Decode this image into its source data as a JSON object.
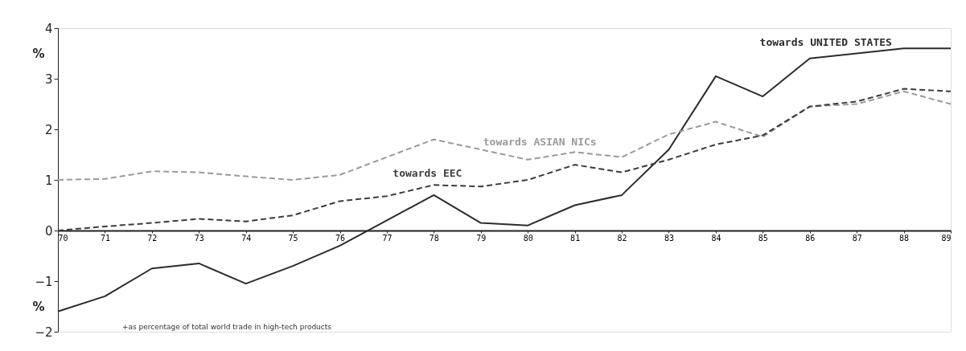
{
  "chart_data": {
    "type": "line",
    "categories": [
      "70",
      "71",
      "72",
      "73",
      "74",
      "75",
      "76",
      "77",
      "78",
      "79",
      "80",
      "81",
      "82",
      "83",
      "84",
      "85",
      "86",
      "87",
      "88",
      "89"
    ],
    "series": [
      {
        "name": "towards UNITED STATES",
        "color": "#2b2b2b",
        "line_style": "solid",
        "values": [
          -1.6,
          -1.3,
          -0.75,
          -0.65,
          -1.05,
          -0.7,
          -0.3,
          0.2,
          0.7,
          0.15,
          0.1,
          0.5,
          0.7,
          1.6,
          3.05,
          2.65,
          3.4,
          3.5,
          3.6,
          3.6
        ]
      },
      {
        "name": "towards ASIAN NICs",
        "color": "#9a9a9a",
        "line_style": "dashed",
        "values": [
          1.0,
          1.02,
          1.17,
          1.15,
          1.07,
          1.0,
          1.1,
          1.45,
          1.8,
          1.6,
          1.4,
          1.55,
          1.45,
          1.9,
          2.15,
          1.85,
          2.45,
          2.5,
          2.75,
          2.5
        ]
      },
      {
        "name": "towards EEC",
        "color": "#3c3c3c",
        "line_style": "dashed",
        "values": [
          0.0,
          0.08,
          0.15,
          0.23,
          0.18,
          0.3,
          0.58,
          0.68,
          0.9,
          0.87,
          1.0,
          1.3,
          1.15,
          1.4,
          1.7,
          1.88,
          2.45,
          2.55,
          2.8,
          2.75
        ]
      }
    ],
    "ylabel": "%",
    "ylim": [
      -2,
      4
    ],
    "yticks": [
      -2,
      -1,
      0,
      1,
      2,
      3,
      4
    ],
    "annotations": [
      "+as percentage of total world trade in high-tech products"
    ]
  }
}
